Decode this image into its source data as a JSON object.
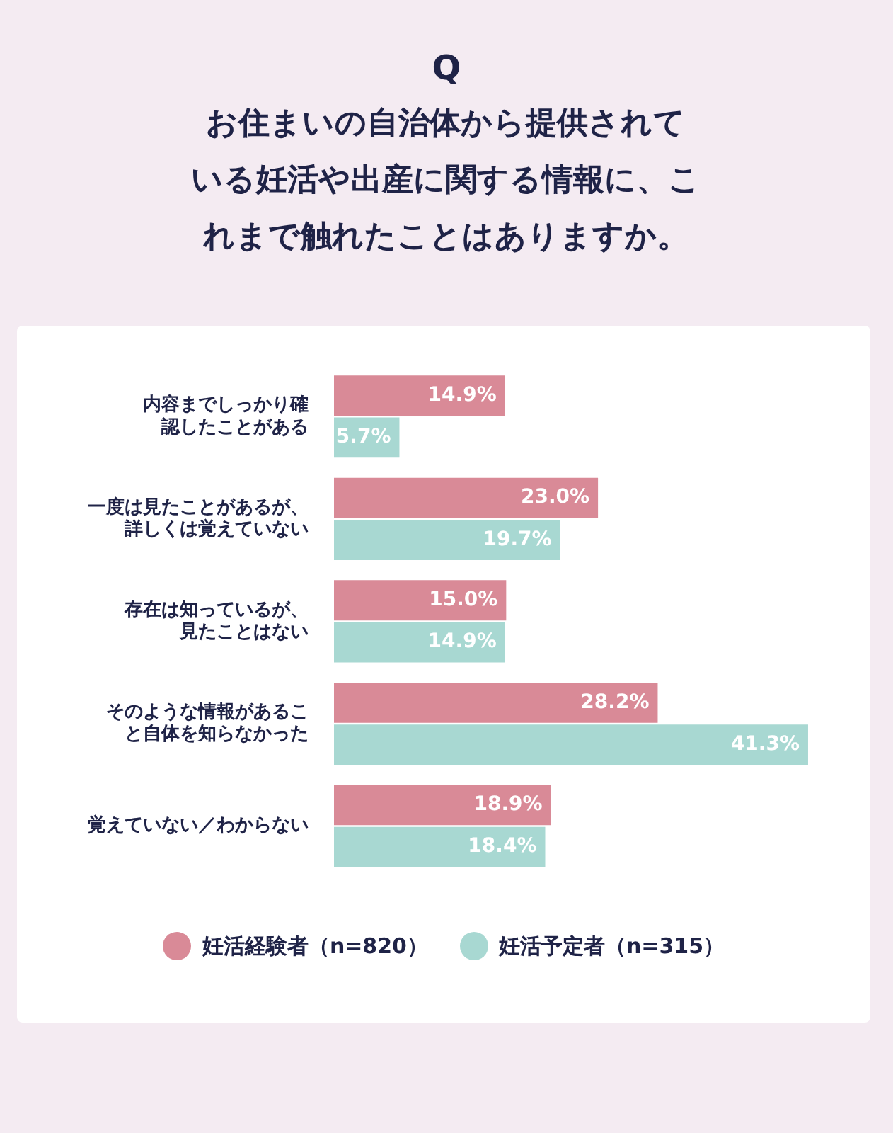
{
  "chart_data": {
    "type": "bar",
    "orientation": "horizontal",
    "title": "Q",
    "subtitle": "お住まいの自治体から提供されている妊活や出産に関する情報に、これまで触れたことはありますか。",
    "categories": [
      "内容までしっかり確認したことがある",
      "一度は見たことがあるが、詳しくは覚えていない",
      "存在は知っているが、見たことはない",
      "そのような情報があること自体を知らなかった",
      "覚えていない／わからない"
    ],
    "series": [
      {
        "name": "妊活経験者（n=820）",
        "color": "#d98a97",
        "values": [
          14.9,
          23.0,
          15.0,
          28.2,
          18.9
        ],
        "value_labels": [
          "14.9%",
          "23.0%",
          "15.0%",
          "28.2%",
          "18.9%"
        ]
      },
      {
        "name": "妊活予定者（n=315）",
        "color": "#a8d8d2",
        "values": [
          5.7,
          19.7,
          14.9,
          41.3,
          18.4
        ],
        "value_labels": [
          "5.7%",
          "19.7%",
          "14.9%",
          "41.3%",
          "18.4%"
        ]
      }
    ],
    "legend": "bottom",
    "tick_labels": "y"
  }
}
